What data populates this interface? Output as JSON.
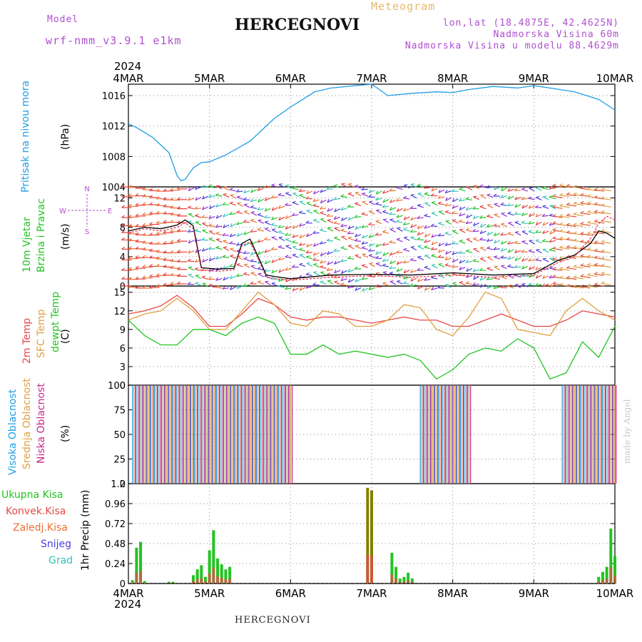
{
  "header": {
    "model_label": "Model",
    "model_value": "wrf-nmm_v3.9.1 e1km",
    "title": "HERCEGNOVI",
    "meteogram": "Meteogram",
    "lonlat": "lon,lat (18.4875E, 42.4625N)",
    "altitude": "Nadmorska Visina 60m",
    "model_altitude": "Nadmorska Visina u modelu 88.4629m"
  },
  "footer": {
    "station": "HERCEGNOVI",
    "watermark": "made by Angel"
  },
  "time_axis": {
    "year": "2024",
    "days": [
      "4MAR",
      "5MAR",
      "6MAR",
      "7MAR",
      "8MAR",
      "9MAR",
      "10MAR"
    ]
  },
  "chart_data": [
    {
      "type": "line",
      "name": "pressure",
      "ylabel": "Pritisak na nivou mora",
      "unit": "(hPa)",
      "ylim": [
        1004,
        1017.5
      ],
      "yticks": [
        1004,
        1008,
        1012,
        1016
      ],
      "grid": true,
      "colors": [
        "#1e9ee6"
      ],
      "x": [
        0,
        0.1,
        0.3,
        0.5,
        0.6,
        0.65,
        0.7,
        0.8,
        0.9,
        1.0,
        1.2,
        1.5,
        1.8,
        2.0,
        2.3,
        2.5,
        2.8,
        3.0,
        3.2,
        3.5,
        3.8,
        4.0,
        4.2,
        4.5,
        4.8,
        5.0,
        5.2,
        5.5,
        5.8,
        6.0
      ],
      "y": [
        1012.3,
        1011.8,
        1010.5,
        1008.5,
        1005.5,
        1004.8,
        1005,
        1006.5,
        1007.2,
        1007.3,
        1008.2,
        1010,
        1013,
        1014.5,
        1016.5,
        1017,
        1017.3,
        1017.5,
        1016,
        1016.3,
        1016.5,
        1016.4,
        1016.8,
        1017.2,
        1017,
        1017.3,
        1017,
        1016.5,
        1015.5,
        1014.1
      ]
    },
    {
      "type": "line",
      "name": "wind",
      "ylabel": "10m Vjetar Brzina i Pravac",
      "unit": "(m/s)",
      "compass": [
        "N",
        "E",
        "S",
        "W"
      ],
      "ylim": [
        0,
        13.5
      ],
      "yticks": [
        0,
        4,
        8,
        12
      ],
      "grid": true,
      "x": [
        0,
        0.2,
        0.4,
        0.6,
        0.7,
        0.8,
        0.9,
        1.1,
        1.3,
        1.4,
        1.5,
        1.6,
        1.7,
        1.8,
        2.0,
        2.5,
        3.0,
        3.5,
        4.0,
        4.5,
        5.0,
        5.3,
        5.5,
        5.7,
        5.8,
        5.9,
        6.0
      ],
      "series": [
        {
          "color": "#000000",
          "values": [
            7.5,
            8,
            7.8,
            8.3,
            9,
            8.2,
            2.5,
            2.3,
            2.4,
            5.8,
            6.4,
            4,
            1.5,
            1.3,
            1,
            1.5,
            1.6,
            1.5,
            1.8,
            1.5,
            1.7,
            3.5,
            4.2,
            5.8,
            7.5,
            7.2,
            6.5
          ]
        },
        {
          "color": "#e83c5a",
          "values": [
            7.2,
            7.8,
            7.5,
            8,
            8.6,
            7.8,
            2.2,
            2,
            2.2,
            5.5,
            6,
            3.7,
            1.2,
            1,
            0.8,
            1.2,
            1.4,
            1.2,
            1.5,
            1.2,
            1.5,
            3.2,
            4,
            6.5,
            8.5,
            9.5,
            9
          ]
        }
      ],
      "arrow_rows": [
        0,
        1.2,
        2.4,
        3.6,
        4.8,
        6,
        7.2,
        8.4,
        9.6,
        10.8,
        12,
        13.2
      ]
    },
    {
      "type": "line",
      "name": "temperature",
      "ylabel": "2m Temp SFC Temp dewpt Temp",
      "unit": "(C)",
      "ylim": [
        0,
        16
      ],
      "yticks": [
        0,
        3,
        6,
        9,
        12,
        15
      ],
      "grid": true,
      "x": [
        0,
        0.2,
        0.4,
        0.6,
        0.8,
        1.0,
        1.2,
        1.4,
        1.6,
        1.8,
        2.0,
        2.2,
        2.4,
        2.6,
        2.8,
        3.0,
        3.2,
        3.4,
        3.6,
        3.8,
        4.0,
        4.2,
        4.4,
        4.6,
        4.8,
        5.0,
        5.2,
        5.4,
        5.6,
        5.8,
        6.0
      ],
      "series": [
        {
          "name": "2m Temp",
          "color": "#e84848",
          "values": [
            11.5,
            12,
            12.8,
            14.5,
            12.5,
            9.5,
            9.5,
            11.5,
            14,
            13,
            11,
            10.5,
            11,
            11,
            10.5,
            10,
            10.5,
            11,
            10.5,
            10.5,
            9.5,
            9.5,
            10.5,
            11.5,
            10.5,
            9.5,
            9.5,
            10.5,
            12,
            11.5,
            11
          ]
        },
        {
          "name": "SFC Temp",
          "color": "#e0a040",
          "values": [
            10.5,
            11.5,
            12,
            14,
            12,
            9,
            9,
            12,
            15,
            13,
            10,
            9.5,
            12,
            11.5,
            9.5,
            9.5,
            10.5,
            13,
            12.5,
            9,
            8,
            11,
            15,
            14,
            9,
            8.5,
            8,
            12,
            14,
            12,
            10.5
          ]
        },
        {
          "name": "dewpt Temp",
          "color": "#22c422",
          "values": [
            10.5,
            8,
            6.5,
            6.5,
            9,
            9,
            8,
            10,
            11,
            10,
            5,
            5,
            6.5,
            5,
            5.5,
            5,
            4.5,
            5,
            4,
            1,
            2.5,
            5,
            6,
            5.5,
            7.5,
            6,
            1,
            2,
            7,
            4.5,
            9.5
          ]
        }
      ]
    },
    {
      "type": "bar",
      "name": "cloudiness",
      "ylabel": "Visoka Oblacnost Srednja Oblacnost Niska Oblacnost",
      "unit": "(%)",
      "ylim": [
        0,
        100
      ],
      "yticks": [
        0,
        25,
        50,
        75,
        100
      ],
      "grid": true,
      "colors": [
        "#1e9ee6",
        "#e0a040",
        "#c8288c"
      ],
      "segments": [
        {
          "from": 0.05,
          "to": 2.0,
          "value": 100
        },
        {
          "from": 3.6,
          "to": 4.2,
          "value": 100
        },
        {
          "from": 5.35,
          "to": 6.0,
          "value": 100
        }
      ]
    },
    {
      "type": "bar",
      "name": "precipitation",
      "ylabel": "1hr Precip (mm)",
      "ylim": [
        0,
        1.2
      ],
      "yticks": [
        0,
        0.24,
        0.48,
        0.72,
        0.96,
        1.2
      ],
      "grid": true,
      "legend": [
        "Ukupna Kisa",
        "Konvek.Kisa",
        "Zaledj.Kisa",
        "Snijeg",
        "Grad"
      ],
      "legend_colors": [
        "#22c422",
        "#e84848",
        "#ee7030",
        "#4a3cdc",
        "#30c4b4"
      ],
      "x": [
        0.05,
        0.1,
        0.15,
        0.2,
        0.5,
        0.55,
        0.8,
        0.85,
        0.9,
        0.95,
        1.0,
        1.05,
        1.1,
        1.15,
        1.2,
        1.25,
        2.95,
        3.0,
        3.25,
        3.3,
        3.35,
        3.4,
        3.45,
        3.5,
        5.8,
        5.85,
        5.9,
        5.95,
        6.0
      ],
      "values": [
        0.04,
        0.43,
        0.5,
        0.03,
        0.02,
        0.02,
        0.1,
        0.17,
        0.22,
        0.08,
        0.4,
        0.64,
        0.3,
        0.23,
        0.17,
        0.2,
        1.15,
        1.12,
        0.37,
        0.2,
        0.06,
        0.08,
        0.13,
        0.06,
        0.08,
        0.14,
        0.2,
        0.66,
        0.33
      ]
    }
  ]
}
